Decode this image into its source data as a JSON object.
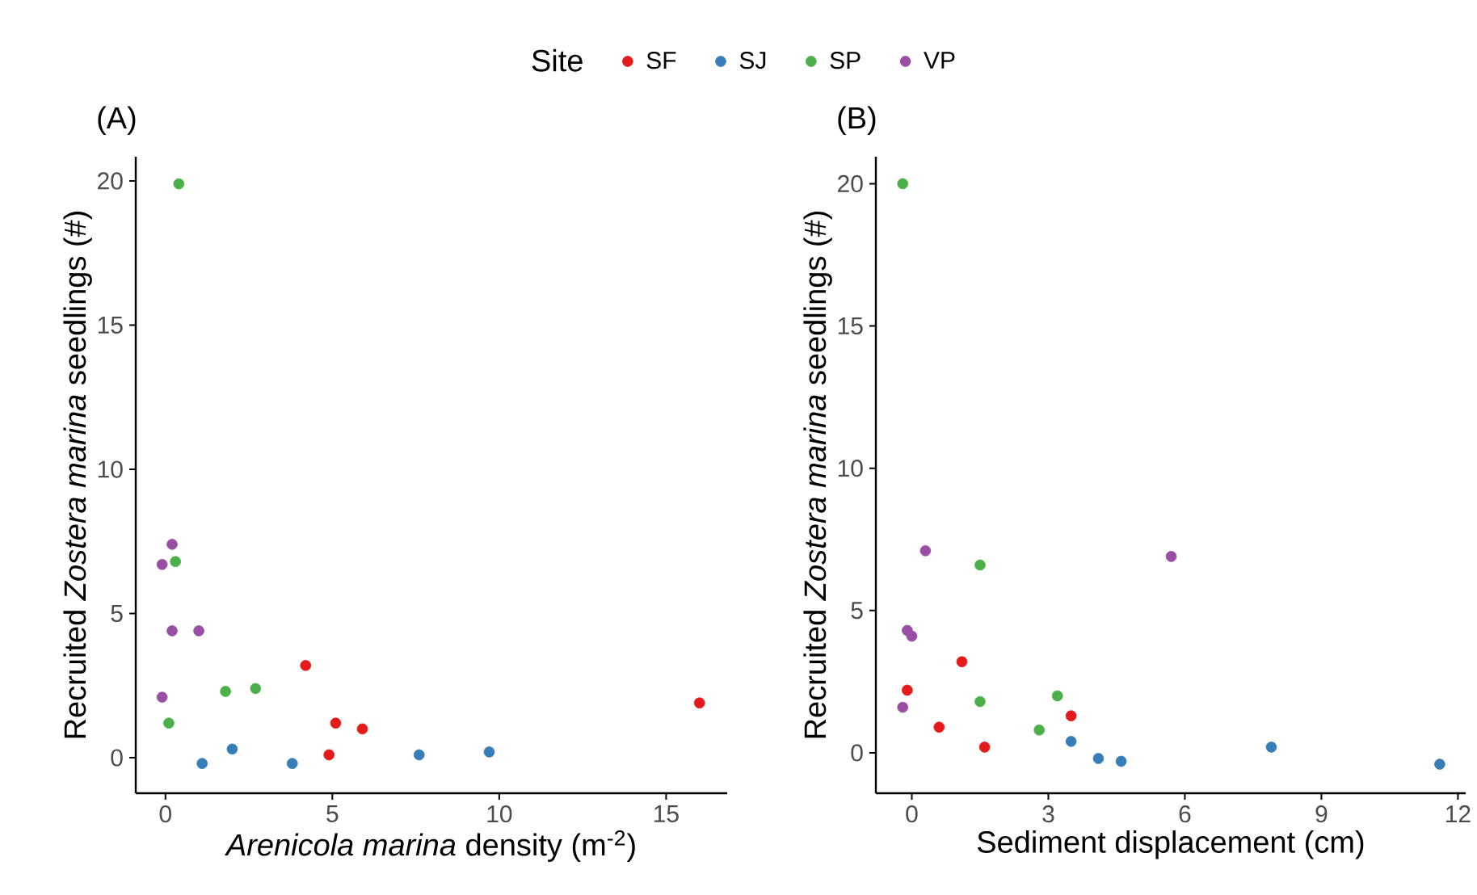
{
  "chart_data": [
    {
      "type": "scatter",
      "title": "(A)",
      "xlabel": "*Arenicola marina* density (m$^{-2}$)",
      "ylabel": "Recruited *Zostera marina* seedlings (#)",
      "legend_title": "Site",
      "legend": "top",
      "marker": "circle",
      "xlim": [
        -0.89,
        16.83
      ],
      "ylim": [
        -1.23,
        20.84
      ],
      "xticks": [
        0,
        5,
        10,
        15
      ],
      "yticks": [
        0,
        5,
        10,
        15,
        20
      ],
      "series": [
        {
          "name": "SF",
          "color": "#e41a1c",
          "x": [
            4.2,
            5.1,
            5.9,
            4.9,
            16.0
          ],
          "values": [
            3.2,
            1.2,
            1.0,
            0.1,
            1.9
          ]
        },
        {
          "name": "SJ",
          "color": "#377eb8",
          "x": [
            1.1,
            2.0,
            3.8,
            7.6,
            9.7
          ],
          "values": [
            -0.2,
            0.3,
            -0.2,
            0.1,
            0.2
          ]
        },
        {
          "name": "SP",
          "color": "#4daf4a",
          "x": [
            0.4,
            0.3,
            1.8,
            2.7,
            0.1
          ],
          "values": [
            19.9,
            6.8,
            2.3,
            2.4,
            1.2
          ]
        },
        {
          "name": "VP",
          "color": "#984ea3",
          "x": [
            0.2,
            -0.1,
            0.2,
            1.0,
            -0.1
          ],
          "values": [
            7.4,
            6.7,
            4.4,
            4.4,
            2.1
          ]
        }
      ]
    },
    {
      "type": "scatter",
      "title": "(B)",
      "xlabel": "Sediment displacement (cm)",
      "ylabel": "Recruited *Zostera marina* seedlings (#)",
      "marker": "circle",
      "xlim": [
        -0.79,
        12.17
      ],
      "ylim": [
        -1.42,
        20.95
      ],
      "xticks": [
        0,
        3,
        6,
        9,
        12
      ],
      "yticks": [
        0,
        5,
        10,
        15,
        20
      ],
      "series": [
        {
          "color": "#e41a1c",
          "x": [
            1.1,
            -0.1,
            0.6,
            1.6,
            3.5
          ],
          "values": [
            3.2,
            2.2,
            0.9,
            0.2,
            1.3
          ]
        },
        {
          "color": "#377eb8",
          "x": [
            3.5,
            4.1,
            4.6,
            7.9,
            11.6
          ],
          "values": [
            0.4,
            -0.2,
            -0.3,
            0.2,
            -0.4
          ]
        },
        {
          "color": "#4daf4a",
          "x": [
            -0.2,
            1.5,
            1.5,
            3.2,
            2.8
          ],
          "values": [
            20.0,
            6.6,
            1.8,
            2.0,
            0.8
          ]
        },
        {
          "color": "#984ea3",
          "x": [
            0.3,
            5.7,
            -0.1,
            0.0,
            -0.2
          ],
          "values": [
            7.1,
            6.9,
            4.3,
            4.1,
            1.6
          ]
        }
      ]
    }
  ]
}
